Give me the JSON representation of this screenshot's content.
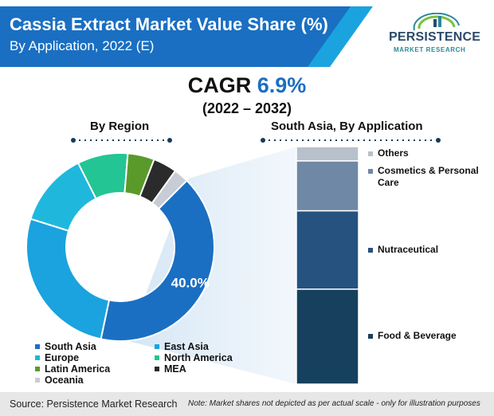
{
  "header": {
    "title": "Cassia Extract Market Value Share (%)",
    "subtitle": "By Application, 2022 (E)",
    "logo_word": "PERSISTENCE",
    "logo_sub": "MARKET RESEARCH"
  },
  "cagr": {
    "label": "CAGR",
    "value": "6.9%",
    "period": "(2022 – 2032)"
  },
  "chart_data": [
    {
      "type": "pie",
      "title": "By Region",
      "categories": [
        "South Asia",
        "East Asia",
        "Europe",
        "North America",
        "Latin America",
        "MEA",
        "Oceania"
      ],
      "values": [
        40.0,
        26.0,
        12.5,
        8.5,
        4.5,
        4.0,
        2.5
      ],
      "colors": [
        "#1a6fc2",
        "#1aa3de",
        "#1fb8dc",
        "#22c593",
        "#5a9a2a",
        "#2b2b2b",
        "#c8ccd4"
      ],
      "data_labels": [
        "40.0%"
      ],
      "legend_placement": "bottom"
    },
    {
      "type": "bar",
      "title": "South Asia, By Application",
      "stacked": true,
      "categories": [
        "Food & Beverage",
        "Nutraceutical",
        "Cosmetics & Personal Care",
        "Others"
      ],
      "values": [
        40,
        33,
        21,
        6
      ],
      "colors": [
        "#17405f",
        "#25527f",
        "#6e88a6",
        "#b8c0cc"
      ],
      "ylim": [
        0,
        100
      ]
    }
  ],
  "footer": {
    "source": "Source: Persistence Market Research",
    "note": "Note: Market shares not depicted as per actual scale - only for illustration purposes"
  }
}
